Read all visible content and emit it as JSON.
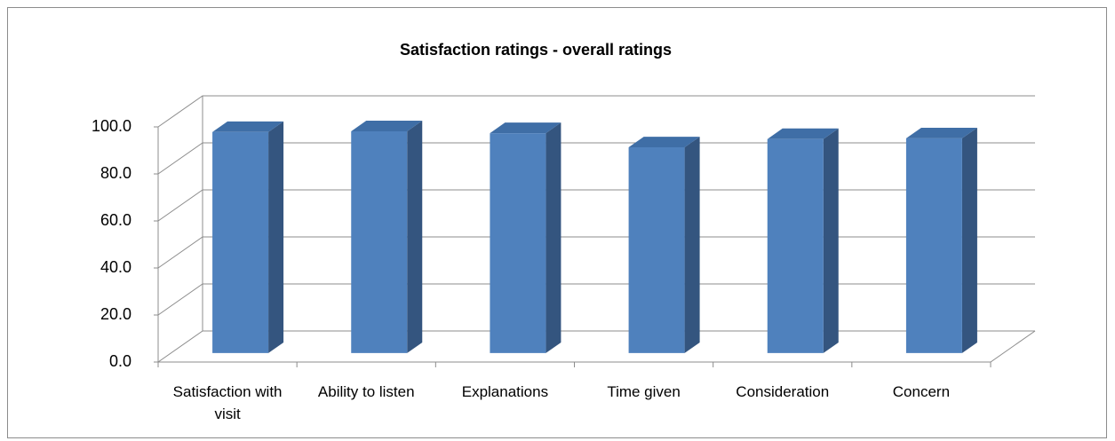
{
  "chart_data": {
    "type": "bar",
    "title": "Satisfaction ratings  - overall ratings",
    "categories": [
      "Satisfaction with visit",
      "Ability to listen",
      "Explanations",
      "Time given",
      "Consideration",
      "Concern"
    ],
    "values": [
      94.0,
      94.3,
      93.5,
      87.5,
      91.0,
      91.3
    ],
    "color": "#4f81bd",
    "ylim": [
      0,
      100
    ],
    "yticks": [
      {
        "value": 0,
        "label": "0.0"
      },
      {
        "value": 20,
        "label": "20.0"
      },
      {
        "value": 40,
        "label": "40.0"
      },
      {
        "value": 60,
        "label": "60.0"
      },
      {
        "value": 80,
        "label": "80.0"
      },
      {
        "value": 100,
        "label": "100.0"
      }
    ],
    "grid": true
  }
}
